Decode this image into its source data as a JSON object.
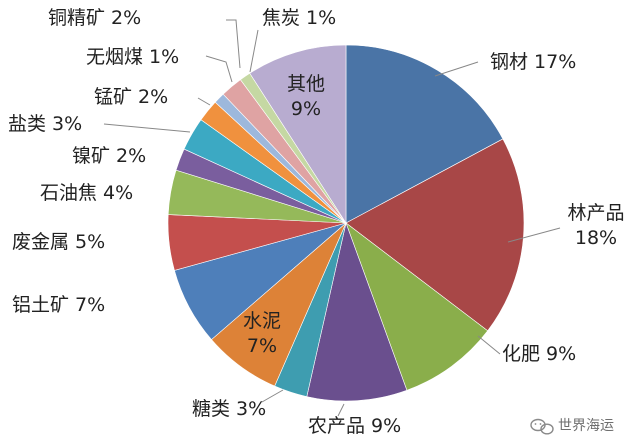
{
  "chart_data": {
    "type": "pie",
    "slices": [
      {
        "name": "钢材",
        "value": 17,
        "label": "17%",
        "color": "#4A74A6"
      },
      {
        "name": "林产品",
        "value": 18,
        "label": "18%",
        "color": "#A84747"
      },
      {
        "name": "化肥",
        "value": 9,
        "label": "9%",
        "color": "#8AAE4B"
      },
      {
        "name": "农产品",
        "value": 9,
        "label": "9%",
        "color": "#6A4F8E"
      },
      {
        "name": "糖类",
        "value": 3,
        "label": "3%",
        "color": "#3E9DB0"
      },
      {
        "name": "水泥",
        "value": 7,
        "label": "7%",
        "color": "#DD8237"
      },
      {
        "name": "铝土矿",
        "value": 7,
        "label": "7%",
        "color": "#4E7FBA"
      },
      {
        "name": "废金属",
        "value": 5,
        "label": "5%",
        "color": "#C44F4D"
      },
      {
        "name": "石油焦",
        "value": 4,
        "label": "4%",
        "color": "#95B95A"
      },
      {
        "name": "镍矿",
        "value": 2,
        "label": "2%",
        "color": "#7A5E9E"
      },
      {
        "name": "盐类",
        "value": 3,
        "label": "3%",
        "color": "#3CA9C3"
      },
      {
        "name": "锰矿",
        "value": 2,
        "label": "2%",
        "color": "#F0913E"
      },
      {
        "name": "无烟煤",
        "value": 1,
        "label": "1%",
        "color": "#9DB8DC"
      },
      {
        "name": "铜精矿",
        "value": 2,
        "label": "2%",
        "color": "#DFA3A3"
      },
      {
        "name": "焦炭",
        "value": 1,
        "label": "1%",
        "color": "#C5D8A3"
      },
      {
        "name": "其他",
        "value": 9,
        "label": "9%",
        "color": "#B8ACD0"
      }
    ]
  },
  "watermark": {
    "text": "世界海运"
  }
}
